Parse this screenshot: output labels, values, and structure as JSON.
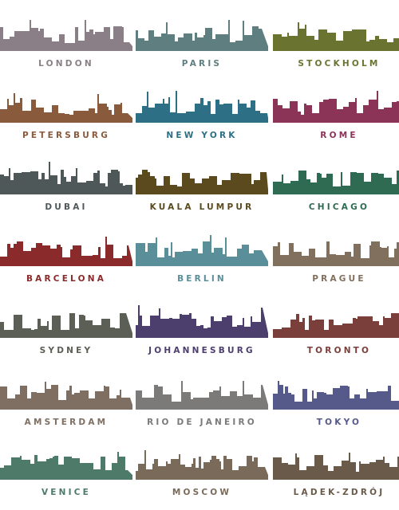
{
  "cities": [
    {
      "name": "LONDON",
      "color": "#8a7f86",
      "icon": "london-skyline"
    },
    {
      "name": "PARIS",
      "color": "#5f7e80",
      "icon": "paris-skyline"
    },
    {
      "name": "STOCKHOLM",
      "color": "#6a7430",
      "icon": "stockholm-skyline"
    },
    {
      "name": "PETERSBURG",
      "color": "#8a5a3c",
      "icon": "petersburg-skyline"
    },
    {
      "name": "NEW YORK",
      "color": "#2d6f85",
      "icon": "newyork-skyline"
    },
    {
      "name": "ROME",
      "color": "#8c3457",
      "icon": "rome-skyline"
    },
    {
      "name": "DUBAI",
      "color": "#4f5859",
      "icon": "dubai-skyline"
    },
    {
      "name": "KUALA LUMPUR",
      "color": "#5a4a1e",
      "icon": "kuala-lumpur-skyline"
    },
    {
      "name": "CHICAGO",
      "color": "#2f6a52",
      "icon": "chicago-skyline"
    },
    {
      "name": "BARCELONA",
      "color": "#8a2a2a",
      "icon": "barcelona-skyline"
    },
    {
      "name": "BERLIN",
      "color": "#5a8f9a",
      "icon": "berlin-skyline"
    },
    {
      "name": "PRAGUE",
      "color": "#82705e",
      "icon": "prague-skyline"
    },
    {
      "name": "SYDNEY",
      "color": "#5b5f55",
      "icon": "sydney-skyline"
    },
    {
      "name": "JOHANNESBURG",
      "color": "#4c3f6e",
      "icon": "johannesburg-skyline"
    },
    {
      "name": "TORONTO",
      "color": "#7a3f3a",
      "icon": "toronto-skyline"
    },
    {
      "name": "AMSTERDAM",
      "color": "#7e6f62",
      "icon": "amsterdam-skyline"
    },
    {
      "name": "RIO DE JANEIRO",
      "color": "#7b7a79",
      "icon": "rio-skyline"
    },
    {
      "name": "TOKYO",
      "color": "#565a8a",
      "icon": "tokyo-skyline"
    },
    {
      "name": "VENICE",
      "color": "#4e7a6a",
      "icon": "venice-skyline"
    },
    {
      "name": "MOSCOW",
      "color": "#7a6a5a",
      "icon": "moscow-skyline"
    },
    {
      "name": "LĄDEK-ZDRÓJ",
      "color": "#6a5a4a",
      "icon": "ladek-zdroj-skyline"
    }
  ]
}
